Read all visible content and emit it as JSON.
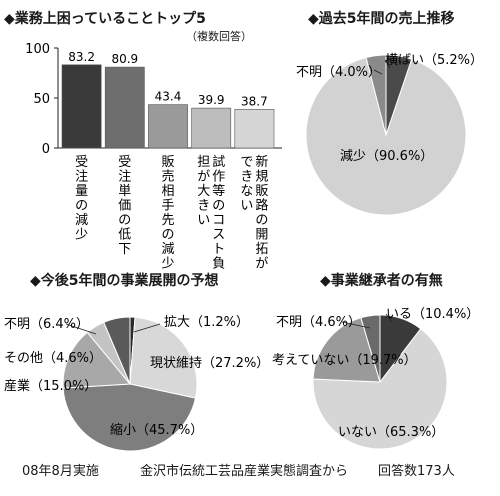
{
  "footer": {
    "date": "08年8月実施",
    "source": "金沢市伝統工芸品産業実態調査から",
    "count": "回答数173人"
  },
  "chart_data": [
    {
      "type": "bar",
      "title": "◆業務上困っていることトップ5",
      "note": "（複数回答）",
      "categories": [
        "受注量の減少",
        "受注単価の低下",
        "販売相手先の減少",
        "試作等のコスト負担が大きい",
        "新規販路の開拓ができない"
      ],
      "values": [
        83.2,
        80.9,
        43.4,
        39.9,
        38.7
      ],
      "value_labels": [
        "83.2",
        "80.9",
        "43.4",
        "39.9",
        "38.7"
      ],
      "yticks": [
        "0",
        "50",
        "100"
      ],
      "ylim": [
        0,
        100
      ],
      "colors": [
        "#3a3a3a",
        "#6e6e6e",
        "#9a9a9a",
        "#bdbdbd",
        "#d6d6d6"
      ]
    },
    {
      "type": "pie",
      "title": "◆過去5年間の売上推移",
      "slices": [
        {
          "label": "横ばい（5.2%）",
          "value": 5.2,
          "color": "#4a4a4a"
        },
        {
          "label": "減少（90.6%）",
          "value": 90.6,
          "color": "#d2d2d2"
        },
        {
          "label": "不明（4.0%）",
          "value": 4.0,
          "color": "#8a8a8a"
        }
      ]
    },
    {
      "type": "pie",
      "title": "◆今後5年間の事業展開の予想",
      "slices": [
        {
          "label": "拡大（1.2%）",
          "value": 1.2,
          "color": "#2a2a2a"
        },
        {
          "label": "現状維持（27.2%）",
          "value": 27.2,
          "color": "#d8d8d8"
        },
        {
          "label": "縮小（45.7%）",
          "value": 45.7,
          "color": "#7e7e7e"
        },
        {
          "label": "産業（15.0%）",
          "value": 15.0,
          "color": "#a8a8a8"
        },
        {
          "label": "その他（4.6%）",
          "value": 4.6,
          "color": "#c4c4c4"
        },
        {
          "label": "不明（6.4%）",
          "value": 6.4,
          "color": "#5a5a5a"
        }
      ]
    },
    {
      "type": "pie",
      "title": "◆事業継承者の有無",
      "slices": [
        {
          "label": "いる（10.4%）",
          "value": 10.4,
          "color": "#3a3a3a"
        },
        {
          "label": "いない（65.3%）",
          "value": 65.3,
          "color": "#d6d6d6"
        },
        {
          "label": "考えていない（19.7%）",
          "value": 19.7,
          "color": "#9a9a9a"
        },
        {
          "label": "不明（4.6%）",
          "value": 4.6,
          "color": "#6a6a6a"
        }
      ]
    }
  ]
}
